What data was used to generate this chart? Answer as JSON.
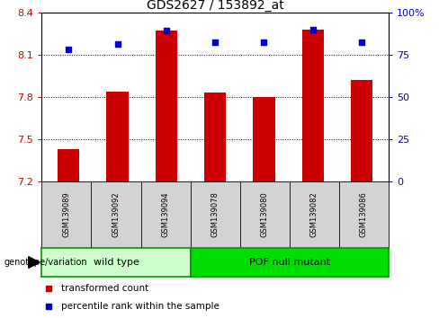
{
  "title": "GDS2627 / 153892_at",
  "samples": [
    "GSM139089",
    "GSM139092",
    "GSM139094",
    "GSM139078",
    "GSM139080",
    "GSM139082",
    "GSM139086"
  ],
  "bar_values": [
    7.43,
    7.84,
    8.27,
    7.83,
    7.8,
    8.28,
    7.92
  ],
  "dot_values": [
    8.14,
    8.18,
    8.27,
    8.19,
    8.19,
    8.28,
    8.19
  ],
  "bar_color": "#cc0000",
  "dot_color": "#0000cc",
  "y_min": 7.2,
  "y_max": 8.4,
  "y_ticks": [
    7.2,
    7.5,
    7.8,
    8.1,
    8.4
  ],
  "y2_ticks": [
    0,
    25,
    50,
    75,
    100
  ],
  "y2_labels": [
    "0",
    "25",
    "50",
    "75",
    "100%"
  ],
  "dotted_lines": [
    7.5,
    7.8,
    8.1
  ],
  "groups": [
    {
      "label": "wild type",
      "n_samples": 3,
      "color": "#ccffcc",
      "border": "#00bb00"
    },
    {
      "label": "POF null mutant",
      "n_samples": 4,
      "color": "#00dd00",
      "border": "#00aa00"
    }
  ],
  "genotype_label": "genotype/variation",
  "legend_items": [
    {
      "label": "transformed count",
      "color": "#cc0000"
    },
    {
      "label": "percentile rank within the sample",
      "color": "#0000cc"
    }
  ],
  "tick_color_left": "#cc0000",
  "tick_color_right": "#0000cc",
  "bar_bottom": 7.2,
  "bar_width": 0.45,
  "label_box_color": "#d3d3d3",
  "group_border_color": "#009900"
}
